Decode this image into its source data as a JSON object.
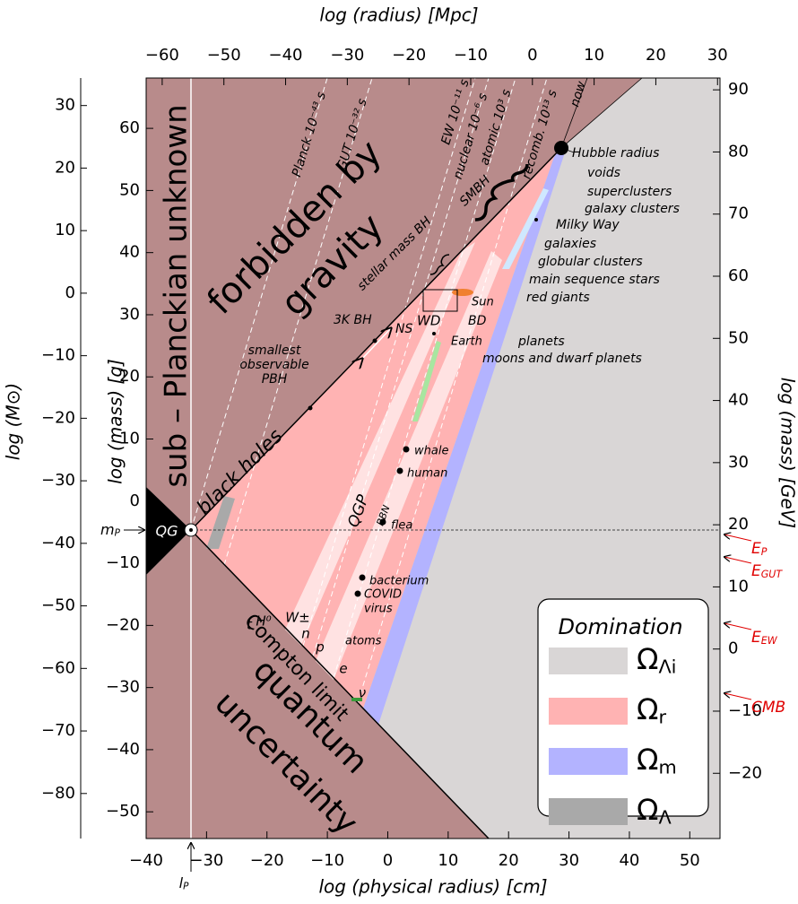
{
  "chart_data": {
    "type": "phase-diagram",
    "xlabel": "log (physical radius) [cm]",
    "xlim": [
      -40,
      55
    ],
    "xticks": [
      {
        "value": -40,
        "label": "−40"
      },
      {
        "value": -30,
        "label": "−30"
      },
      {
        "value": -20,
        "label": "−20"
      },
      {
        "value": -10,
        "label": "−10"
      },
      0,
      10,
      20,
      30,
      40,
      50
    ],
    "x2label": "log (radius) [Mpc]",
    "x2lim": [
      -62.6,
      30.4
    ],
    "x2ticks": [
      {
        "value": -60,
        "label": "−60"
      },
      {
        "value": -50,
        "label": "−50"
      },
      {
        "value": -40,
        "label": "−40"
      },
      {
        "value": -30,
        "label": "−30"
      },
      {
        "value": -20,
        "label": "−20"
      },
      {
        "value": -10,
        "label": "−10"
      },
      0,
      10,
      20,
      30
    ],
    "ylabel": "log (mass) [g]",
    "ylim": [
      -54.3,
      68.1
    ],
    "yticks": [
      60,
      50,
      40,
      30,
      20,
      10,
      0,
      {
        "value": -10,
        "label": "−10"
      },
      {
        "value": -20,
        "label": "−20"
      },
      {
        "value": -30,
        "label": "−30"
      },
      {
        "value": -40,
        "label": "−40"
      },
      {
        "value": -50,
        "label": "−50"
      }
    ],
    "y3label": "log (M⊙)",
    "y3lim": [
      -87.2,
      34.4
    ],
    "y3ticks": [
      30,
      20,
      10,
      0,
      {
        "value": -10,
        "label": "−10"
      },
      {
        "value": -20,
        "label": "−20"
      },
      {
        "value": -30,
        "label": "−30"
      },
      {
        "value": -40,
        "label": "−40"
      },
      {
        "value": -50,
        "label": "−50"
      },
      {
        "value": -60,
        "label": "−60"
      },
      {
        "value": -70,
        "label": "−70"
      },
      {
        "value": -80,
        "label": "−80"
      }
    ],
    "y2label": "log (mass) [GeV]",
    "y2lim": [
      -30.5,
      91.9
    ],
    "y2ticks": [
      90,
      80,
      70,
      60,
      50,
      40,
      30,
      20,
      10,
      0,
      {
        "value": -10,
        "label": "−10"
      },
      {
        "value": -20,
        "label": "−20"
      }
    ],
    "legend": {
      "title": "Domination",
      "entries": [
        {
          "name": "Ω_Λi",
          "color": "#d9d6d6"
        },
        {
          "name": "Ω_r",
          "color": "#ffb3b3"
        },
        {
          "name": "Ω_m",
          "color": "#b3b3ff"
        },
        {
          "name": "Ω_Λ",
          "color": "#a9a9a9"
        }
      ]
    },
    "annotations": [
      "sub – Planckian unknown",
      "forbidden by",
      "gravity",
      "black holes",
      "quantum",
      "uncertainty",
      "Compton limit",
      "QGP",
      "BBN",
      "QG",
      "Hubble radius",
      "voids",
      "superclusters",
      "galaxy clusters",
      "Milky Way",
      "galaxies",
      "globular clusters",
      "main sequence stars",
      "red giants",
      "Sun",
      "BD",
      "WD",
      "NS",
      "3K BH",
      "Earth",
      "planets",
      "moons and dwarf planets",
      "smallest",
      "observable",
      "PBH",
      "stellar mass BH",
      "SMBH",
      "whale",
      "human",
      "flea",
      "bacterium",
      "COVID",
      "virus",
      "atoms",
      "t",
      "H⁰",
      "W±",
      "n",
      "p",
      "e",
      "ν",
      "Planck 10⁻⁴³ s",
      "GUT 10⁻³² s",
      "EW 10⁻¹¹ s",
      "nuclear 10⁻⁶ s",
      "atomic 10³ s",
      "recomb. 10¹³ s",
      "now",
      "m_P",
      "l_P"
    ],
    "energy_labels": [
      "E_P",
      "E_GUT",
      "E_EW",
      "CMB"
    ]
  }
}
